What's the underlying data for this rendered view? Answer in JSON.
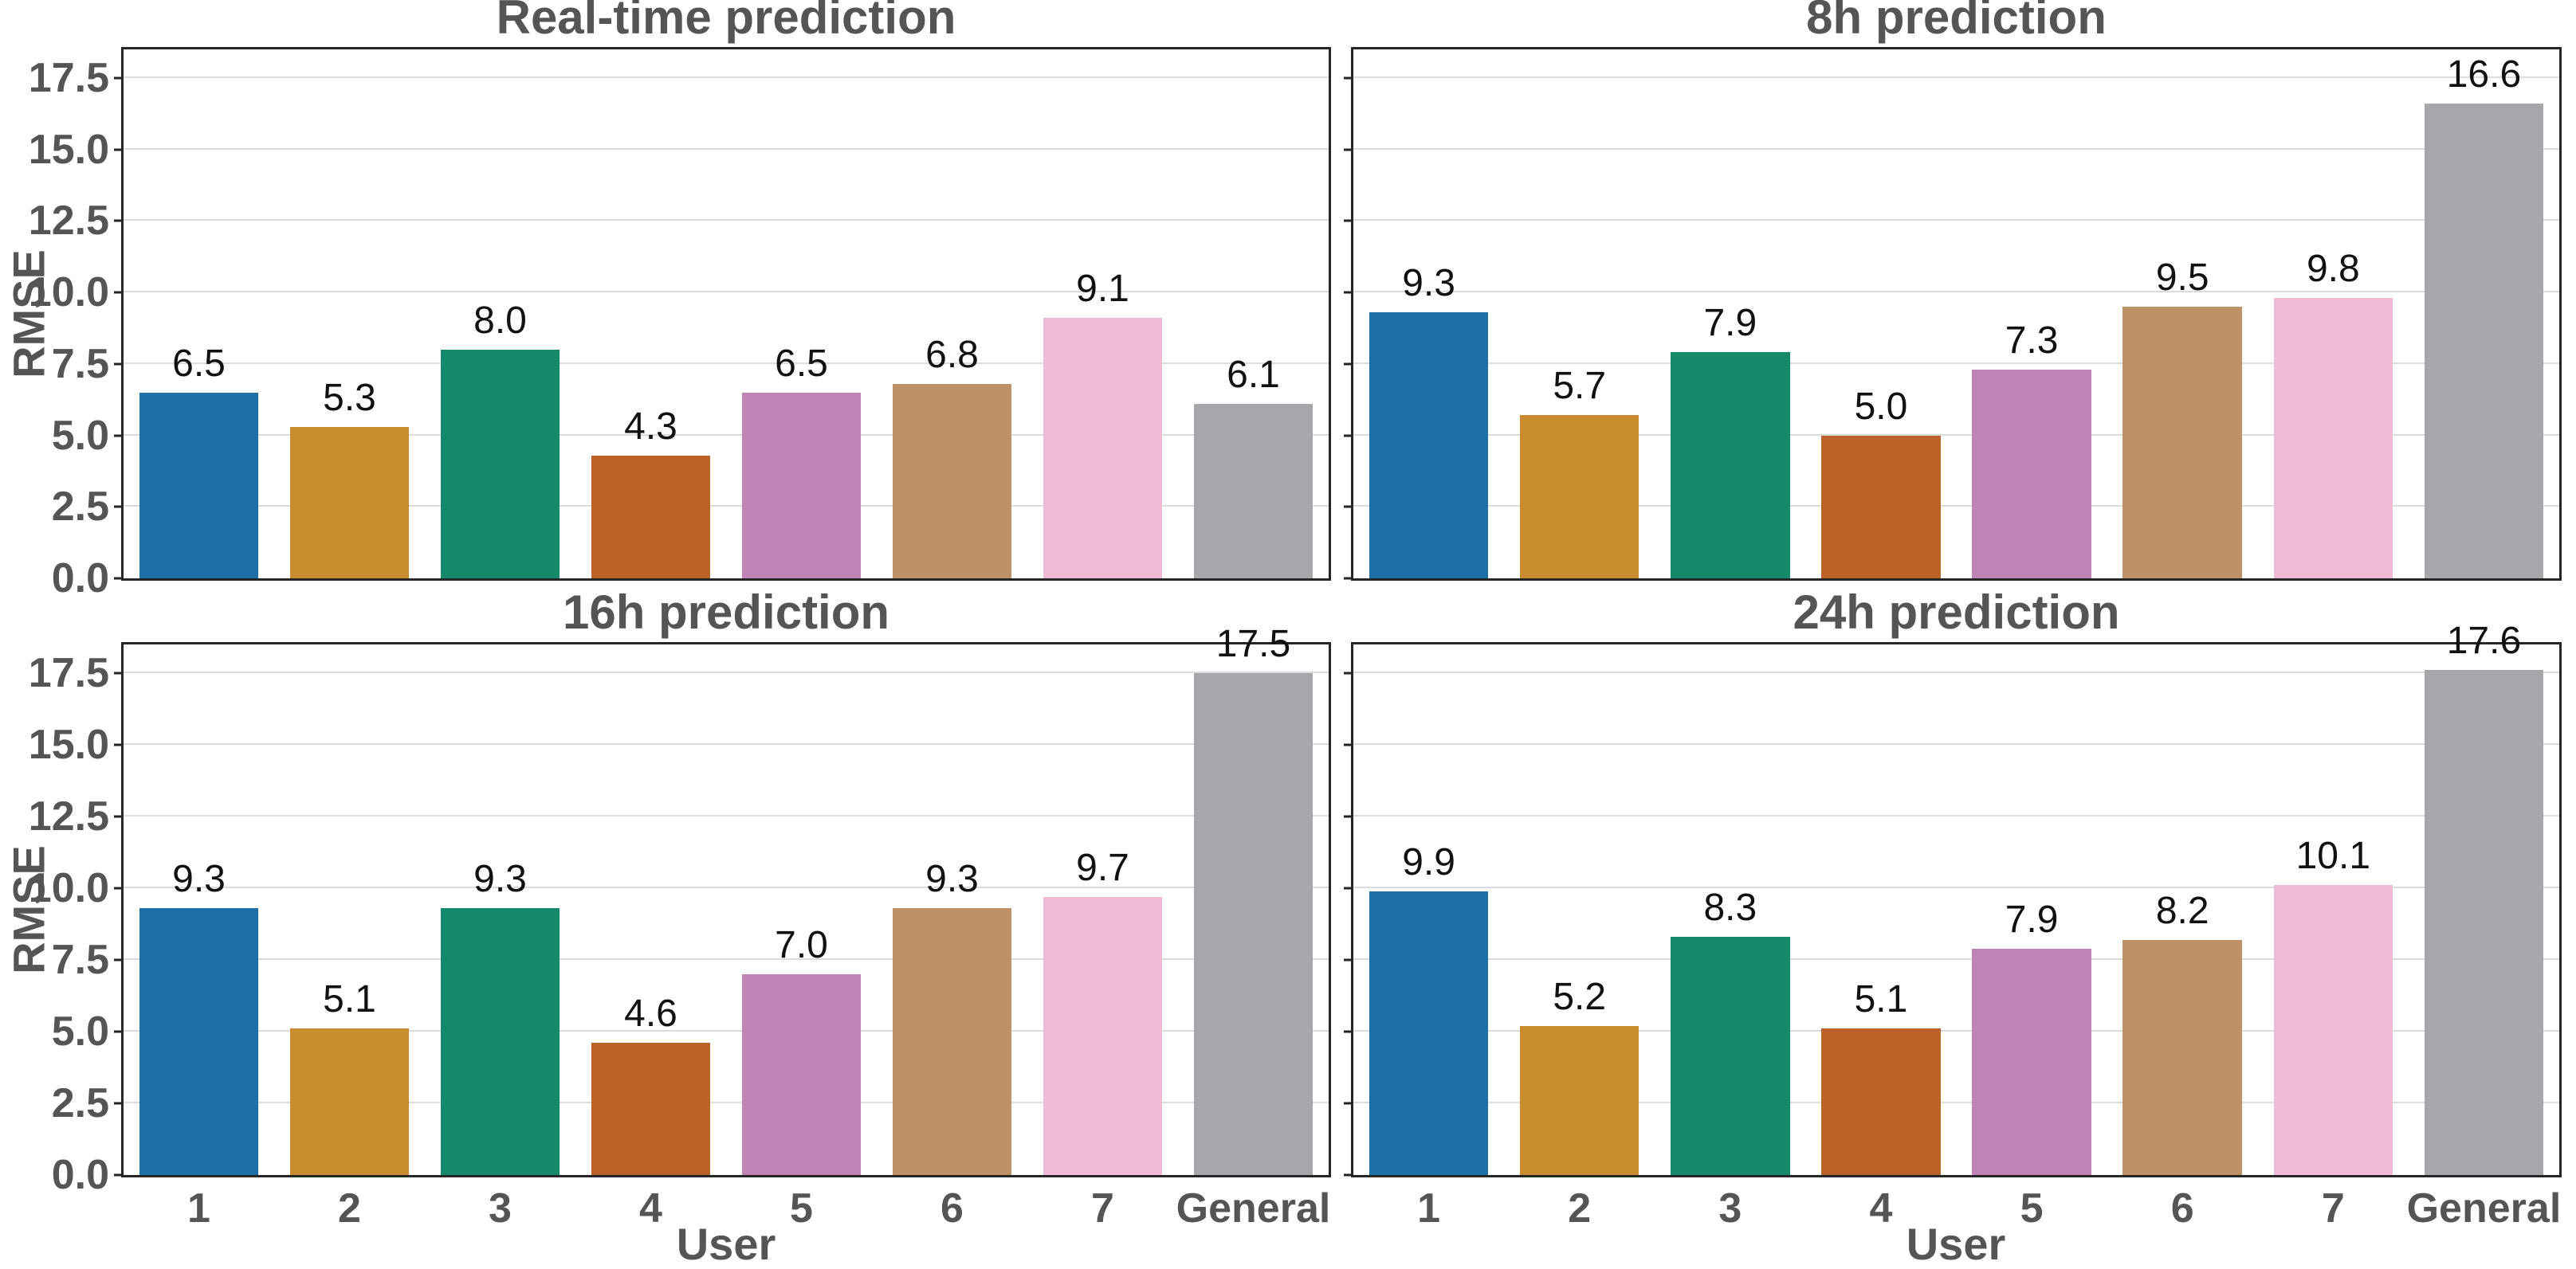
{
  "figure": {
    "ylabel": "RMSE",
    "xlabel": "User",
    "categories": [
      "1",
      "2",
      "3",
      "4",
      "5",
      "6",
      "7",
      "General"
    ],
    "ytick_values": [
      0,
      2.5,
      5,
      7.5,
      10,
      12.5,
      15,
      17.5
    ],
    "ymax": 18.5,
    "bar_colors": [
      "#1d6fa5",
      "#c88b2d",
      "#15896c",
      "#bc6229",
      "#bf83b5",
      "#bf9166",
      "#eebad6",
      "#a7a7ab"
    ],
    "text_color": "#555555",
    "value_label_color": "#111111",
    "grid_color": "#dcdcdc",
    "spine_color": "#262626",
    "background": "#ffffff"
  },
  "chart_data": [
    {
      "type": "bar",
      "title": "Real-time prediction",
      "categories": [
        "1",
        "2",
        "3",
        "4",
        "5",
        "6",
        "7",
        "General"
      ],
      "values": [
        6.5,
        5.3,
        8.0,
        4.3,
        6.5,
        6.8,
        9.1,
        6.1
      ],
      "xlabel": "User",
      "ylabel": "RMSE",
      "ylim": [
        0,
        18.5
      ],
      "yticks": [
        0,
        2.5,
        5,
        7.5,
        10,
        12.5,
        15,
        17.5
      ],
      "grid": "horizontal",
      "legend": "none",
      "value_labels": true
    },
    {
      "type": "bar",
      "title": "8h prediction",
      "categories": [
        "1",
        "2",
        "3",
        "4",
        "5",
        "6",
        "7",
        "General"
      ],
      "values": [
        9.3,
        5.7,
        7.9,
        5.0,
        7.3,
        9.5,
        9.8,
        16.6
      ],
      "xlabel": "User",
      "ylabel": "RMSE",
      "ylim": [
        0,
        18.5
      ],
      "yticks": [
        0,
        2.5,
        5,
        7.5,
        10,
        12.5,
        15,
        17.5
      ],
      "grid": "horizontal",
      "legend": "none",
      "value_labels": true
    },
    {
      "type": "bar",
      "title": "16h prediction",
      "categories": [
        "1",
        "2",
        "3",
        "4",
        "5",
        "6",
        "7",
        "General"
      ],
      "values": [
        9.3,
        5.1,
        9.3,
        4.6,
        7.0,
        9.3,
        9.7,
        17.5
      ],
      "xlabel": "User",
      "ylabel": "RMSE",
      "ylim": [
        0,
        18.5
      ],
      "yticks": [
        0,
        2.5,
        5,
        7.5,
        10,
        12.5,
        15,
        17.5
      ],
      "grid": "horizontal",
      "legend": "none",
      "value_labels": true
    },
    {
      "type": "bar",
      "title": "24h prediction",
      "categories": [
        "1",
        "2",
        "3",
        "4",
        "5",
        "6",
        "7",
        "General"
      ],
      "values": [
        9.9,
        5.2,
        8.3,
        5.1,
        7.9,
        8.2,
        10.1,
        17.6
      ],
      "xlabel": "User",
      "ylabel": "RMSE",
      "ylim": [
        0,
        18.5
      ],
      "yticks": [
        0,
        2.5,
        5,
        7.5,
        10,
        12.5,
        15,
        17.5
      ],
      "grid": "horizontal",
      "legend": "none",
      "value_labels": true
    }
  ]
}
